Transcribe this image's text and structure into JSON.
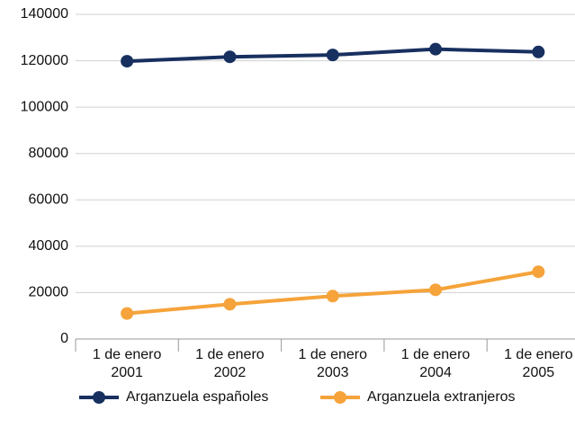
{
  "chart_data": {
    "type": "line",
    "categories": [
      "1 de enero 2001",
      "1 de enero 2002",
      "1 de enero 2003",
      "1 de enero 2004",
      "1 de enero 2005"
    ],
    "series": [
      {
        "name": "Arganzuela españoles",
        "color": "#17305f",
        "values": [
          119800,
          121700,
          122500,
          125000,
          123800
        ]
      },
      {
        "name": "Arganzuela extranjeros",
        "color": "#f5a33a",
        "values": [
          11000,
          15000,
          18500,
          21200,
          29000
        ]
      }
    ],
    "ylim": [
      0,
      140000
    ],
    "yticks": [
      0,
      20000,
      40000,
      60000,
      80000,
      100000,
      120000,
      140000
    ],
    "grid": true
  }
}
